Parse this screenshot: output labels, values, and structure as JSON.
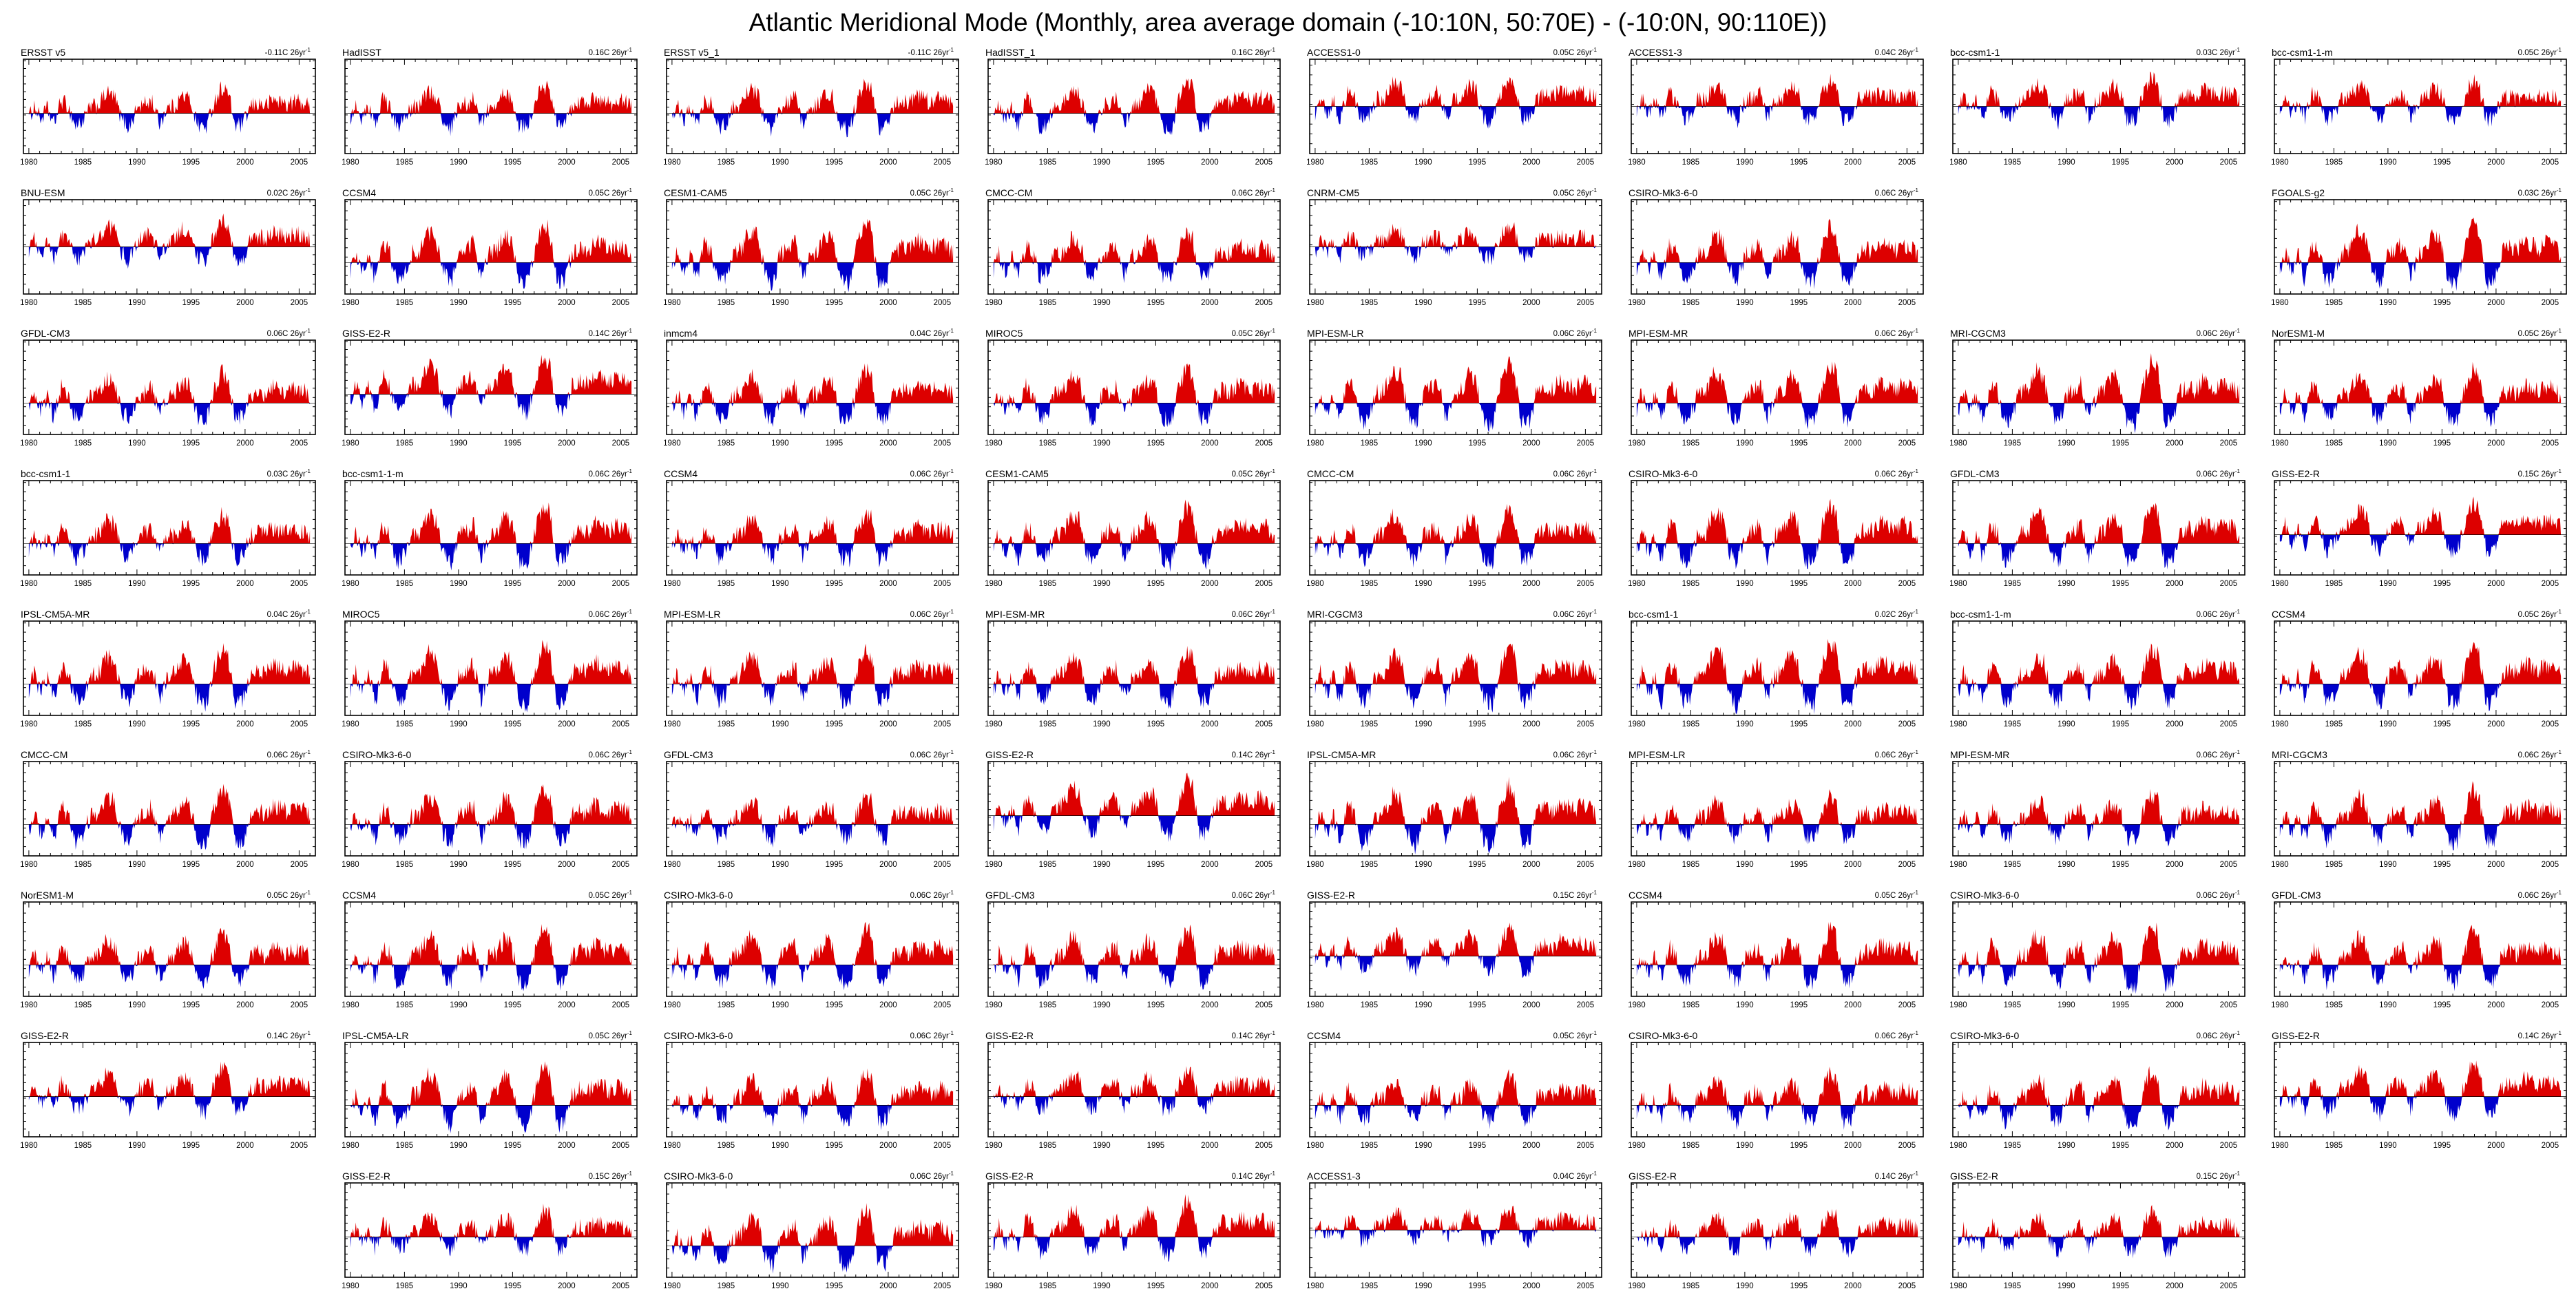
{
  "title": "Atlantic Meridional Mode (Monthly, area average domain (-10:10N, 50:70E) - (-10:0N, 90:110E))",
  "chart_data": {
    "type": "area",
    "description": "Grid of monthly SST anomaly index time series panels, positive anomalies filled red, negative filled blue, per observation dataset / CMIP5 model",
    "x_range": [
      1979.5,
      2006.5
    ],
    "x_tick_labels": [
      "1980",
      "1985",
      "1990",
      "1995",
      "2000",
      "2005"
    ],
    "x_major_ticks": [
      1980,
      1985,
      1990,
      1995,
      2000,
      2005
    ],
    "x_minor_step_years": 1,
    "trend_unit": "26yr",
    "trend_sup": "-1",
    "colors": {
      "positive": "#dd0000",
      "negative": "#0000cc",
      "axis": "#000000",
      "background": "#ffffff"
    },
    "seed": 1234,
    "y_axis_configs": {
      "A": {
        "ticks": [
          1.5,
          1.0,
          0.5,
          0.0,
          -0.5,
          -1.0
        ],
        "min": -1.3,
        "max": 1.75,
        "minor_step": 0.25,
        "amp": 1.0,
        "noise": 0.28
      },
      "B": {
        "ticks": [
          3.0,
          2.0,
          1.0,
          0.0,
          -1.0
        ],
        "min": -1.7,
        "max": 3.4,
        "minor_step": 0.5,
        "amp": 1.9,
        "noise": 0.5
      },
      "C": {
        "ticks": [
          2.0,
          1.0,
          0.0,
          -1.0,
          -2.0
        ],
        "min": -2.4,
        "max": 2.4,
        "minor_step": 0.5,
        "amp": 1.25,
        "noise": 0.45
      }
    },
    "shared_pattern": [
      [
        1980.0,
        -0.2
      ],
      [
        1980.5,
        0.3
      ],
      [
        1981.1,
        -0.25
      ],
      [
        1981.7,
        0.2
      ],
      [
        1982.3,
        -0.45
      ],
      [
        1983.0,
        0.5
      ],
      [
        1983.6,
        0.3
      ],
      [
        1984.3,
        -0.5
      ],
      [
        1985.0,
        -0.3
      ],
      [
        1985.7,
        0.25
      ],
      [
        1986.4,
        0.3
      ],
      [
        1987.2,
        0.8
      ],
      [
        1987.9,
        0.65
      ],
      [
        1988.6,
        -0.25
      ],
      [
        1989.3,
        -0.55
      ],
      [
        1990.0,
        0.2
      ],
      [
        1990.7,
        0.35
      ],
      [
        1991.4,
        0.5
      ],
      [
        1992.1,
        -0.4
      ],
      [
        1992.8,
        0.2
      ],
      [
        1993.5,
        0.3
      ],
      [
        1994.2,
        0.7
      ],
      [
        1994.9,
        0.55
      ],
      [
        1995.6,
        -0.45
      ],
      [
        1996.4,
        -0.55
      ],
      [
        1997.1,
        0.4
      ],
      [
        1997.8,
        1.0
      ],
      [
        1998.4,
        0.85
      ],
      [
        1999.1,
        -0.5
      ],
      [
        1999.8,
        -0.45
      ],
      [
        2000.5,
        0.25
      ],
      [
        2001.2,
        0.4
      ],
      [
        2001.9,
        0.3
      ],
      [
        2002.6,
        0.55
      ],
      [
        2003.3,
        0.45
      ],
      [
        2004.0,
        0.35
      ],
      [
        2004.7,
        0.5
      ],
      [
        2005.4,
        0.4
      ],
      [
        2006.0,
        0.25
      ]
    ],
    "rows": [
      [
        {
          "model": "ERSST v5",
          "trend": "-0.11C",
          "y": "A"
        },
        {
          "model": "HadISST",
          "trend": "0.16C",
          "y": "A"
        },
        {
          "model": "ERSST v5_1",
          "trend": "-0.11C",
          "y": "A"
        },
        {
          "model": "HadISST_1",
          "trend": "0.16C",
          "y": "A"
        },
        {
          "model": "ACCESS1-0",
          "trend": "0.05C",
          "y": "C"
        },
        {
          "model": "ACCESS1-3",
          "trend": "0.04C",
          "y": "C"
        },
        {
          "model": "bcc-csm1-1",
          "trend": "0.03C",
          "y": "C"
        },
        {
          "model": "bcc-csm1-1-m",
          "trend": "0.05C",
          "y": "C"
        }
      ],
      [
        {
          "model": "BNU-ESM",
          "trend": "0.02C",
          "y": "C"
        },
        {
          "model": "CCSM4",
          "trend": "0.05C",
          "y": "B"
        },
        {
          "model": "CESM1-CAM5",
          "trend": "0.05C",
          "y": "B"
        },
        {
          "model": "CMCC-CM",
          "trend": "0.06C",
          "y": "B"
        },
        {
          "model": "CNRM-CM5",
          "trend": "0.05C",
          "y": "C"
        },
        {
          "model": "CSIRO-Mk3-6-0",
          "trend": "0.06C",
          "y": "B"
        },
        null,
        {
          "model": "FGOALS-g2",
          "trend": "0.03C",
          "y": "B"
        }
      ],
      [
        {
          "model": "GFDL-CM3",
          "trend": "0.06C",
          "y": "B"
        },
        {
          "model": "GISS-E2-R",
          "trend": "0.14C",
          "y": "A"
        },
        {
          "model": "inmcm4",
          "trend": "0.04C",
          "y": "B"
        },
        {
          "model": "MIROC5",
          "trend": "0.05C",
          "y": "B"
        },
        {
          "model": "MPI-ESM-LR",
          "trend": "0.06C",
          "y": "B"
        },
        {
          "model": "MPI-ESM-MR",
          "trend": "0.06C",
          "y": "B"
        },
        {
          "model": "MRI-CGCM3",
          "trend": "0.06C",
          "y": "B"
        },
        {
          "model": "NorESM1-M",
          "trend": "0.05C",
          "y": "B"
        }
      ],
      [
        {
          "model": "bcc-csm1-1",
          "trend": "0.03C",
          "y": "B"
        },
        {
          "model": "bcc-csm1-1-m",
          "trend": "0.06C",
          "y": "B"
        },
        {
          "model": "CCSM4",
          "trend": "0.06C",
          "y": "B"
        },
        {
          "model": "CESM1-CAM5",
          "trend": "0.05C",
          "y": "B"
        },
        {
          "model": "CMCC-CM",
          "trend": "0.06C",
          "y": "B"
        },
        {
          "model": "CSIRO-Mk3-6-0",
          "trend": "0.06C",
          "y": "B"
        },
        {
          "model": "GFDL-CM3",
          "trend": "0.06C",
          "y": "B"
        },
        {
          "model": "GISS-E2-R",
          "trend": "0.15C",
          "y": "A"
        }
      ],
      [
        {
          "model": "IPSL-CM5A-MR",
          "trend": "0.04C",
          "y": "B"
        },
        {
          "model": "MIROC5",
          "trend": "0.06C",
          "y": "B"
        },
        {
          "model": "MPI-ESM-LR",
          "trend": "0.06C",
          "y": "B"
        },
        {
          "model": "MPI-ESM-MR",
          "trend": "0.06C",
          "y": "B"
        },
        {
          "model": "MRI-CGCM3",
          "trend": "0.06C",
          "y": "B"
        },
        {
          "model": "bcc-csm1-1",
          "trend": "0.02C",
          "y": "B"
        },
        {
          "model": "bcc-csm1-1-m",
          "trend": "0.06C",
          "y": "B"
        },
        {
          "model": "CCSM4",
          "trend": "0.05C",
          "y": "B"
        }
      ],
      [
        {
          "model": "CMCC-CM",
          "trend": "0.06C",
          "y": "B"
        },
        {
          "model": "CSIRO-Mk3-6-0",
          "trend": "0.06C",
          "y": "B"
        },
        {
          "model": "GFDL-CM3",
          "trend": "0.06C",
          "y": "B"
        },
        {
          "model": "GISS-E2-R",
          "trend": "0.14C",
          "y": "A"
        },
        {
          "model": "IPSL-CM5A-MR",
          "trend": "0.06C",
          "y": "B"
        },
        {
          "model": "MPI-ESM-LR",
          "trend": "0.06C",
          "y": "B"
        },
        {
          "model": "MPI-ESM-MR",
          "trend": "0.06C",
          "y": "B"
        },
        {
          "model": "MRI-CGCM3",
          "trend": "0.06C",
          "y": "B"
        }
      ],
      [
        {
          "model": "NorESM1-M",
          "trend": "0.05C",
          "y": "B"
        },
        {
          "model": "CCSM4",
          "trend": "0.05C",
          "y": "B"
        },
        {
          "model": "CSIRO-Mk3-6-0",
          "trend": "0.06C",
          "y": "B"
        },
        {
          "model": "GFDL-CM3",
          "trend": "0.06C",
          "y": "B"
        },
        {
          "model": "GISS-E2-R",
          "trend": "0.15C",
          "y": "A"
        },
        {
          "model": "CCSM4",
          "trend": "0.05C",
          "y": "B"
        },
        {
          "model": "CSIRO-Mk3-6-0",
          "trend": "0.06C",
          "y": "B"
        },
        {
          "model": "GFDL-CM3",
          "trend": "0.06C",
          "y": "B"
        }
      ],
      [
        {
          "model": "GISS-E2-R",
          "trend": "0.14C",
          "y": "A"
        },
        {
          "model": "IPSL-CM5A-LR",
          "trend": "0.05C",
          "y": "B"
        },
        {
          "model": "CSIRO-Mk3-6-0",
          "trend": "0.06C",
          "y": "B"
        },
        {
          "model": "GISS-E2-R",
          "trend": "0.14C",
          "y": "A"
        },
        {
          "model": "CCSM4",
          "trend": "0.05C",
          "y": "B"
        },
        {
          "model": "CSIRO-Mk3-6-0",
          "trend": "0.06C",
          "y": "B"
        },
        {
          "model": "CSIRO-Mk3-6-0",
          "trend": "0.06C",
          "y": "B"
        },
        {
          "model": "GISS-E2-R",
          "trend": "0.14C",
          "y": "A"
        }
      ],
      [
        null,
        {
          "model": "GISS-E2-R",
          "trend": "0.15C",
          "y": "A"
        },
        {
          "model": "CSIRO-Mk3-6-0",
          "trend": "0.06C",
          "y": "B"
        },
        {
          "model": "GISS-E2-R",
          "trend": "0.14C",
          "y": "A"
        },
        {
          "model": "ACCESS1-3",
          "trend": "0.04C",
          "y": "C"
        },
        {
          "model": "GISS-E2-R",
          "trend": "0.14C",
          "y": "A"
        },
        {
          "model": "GISS-E2-R",
          "trend": "0.15C",
          "y": "A"
        },
        null
      ]
    ]
  }
}
